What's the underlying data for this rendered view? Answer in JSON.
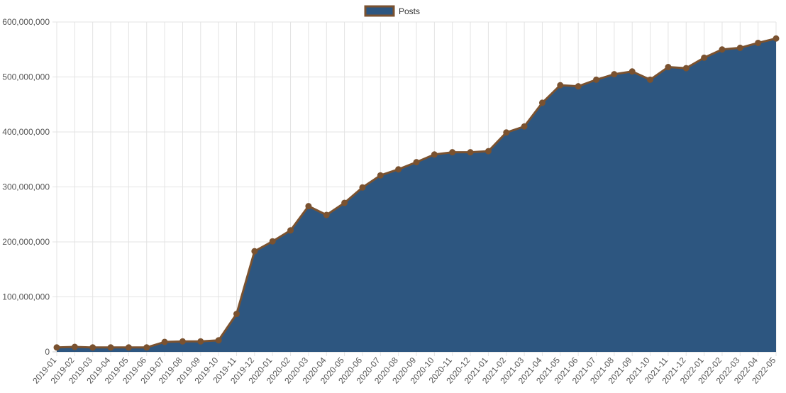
{
  "chart_data": {
    "type": "area",
    "legend_position": "top-center",
    "grid": true,
    "ylim": [
      0,
      600000000
    ],
    "yticks": [
      "0",
      "100,000,000",
      "200,000,000",
      "300,000,000",
      "400,000,000",
      "500,000,000",
      "600,000,000"
    ],
    "ytick_values": [
      0,
      100000000,
      200000000,
      300000000,
      400000000,
      500000000,
      600000000
    ],
    "categories": [
      "2019-01",
      "2019-02",
      "2019-03",
      "2019-04",
      "2019-05",
      "2019-06",
      "2019-07",
      "2019-08",
      "2019-09",
      "2019-10",
      "2019-11",
      "2019-12",
      "2020-01",
      "2020-02",
      "2020-03",
      "2020-04",
      "2020-05",
      "2020-06",
      "2020-07",
      "2020-08",
      "2020-09",
      "2020-10",
      "2020-11",
      "2020-12",
      "2021-01",
      "2021-02",
      "2021-03",
      "2021-04",
      "2021-05",
      "2021-06",
      "2021-07",
      "2021-08",
      "2021-09",
      "2021-10",
      "2021-11",
      "2021-12",
      "2022-01",
      "2022-02",
      "2022-03",
      "2022-04",
      "2022-05"
    ],
    "series": [
      {
        "name": "Posts",
        "fill_color": "#2d5680",
        "line_color": "#7a5230",
        "values": [
          8000000,
          9000000,
          8000000,
          8000000,
          8000000,
          8000000,
          18000000,
          19000000,
          19000000,
          21000000,
          69000000,
          183000000,
          201000000,
          221000000,
          265000000,
          249000000,
          271000000,
          299000000,
          321000000,
          332000000,
          345000000,
          359000000,
          363000000,
          363000000,
          365000000,
          399000000,
          410000000,
          453000000,
          485000000,
          483000000,
          495000000,
          505000000,
          510000000,
          495000000,
          518000000,
          516000000,
          535000000,
          550000000,
          553000000,
          562000000,
          570000000
        ]
      }
    ]
  }
}
